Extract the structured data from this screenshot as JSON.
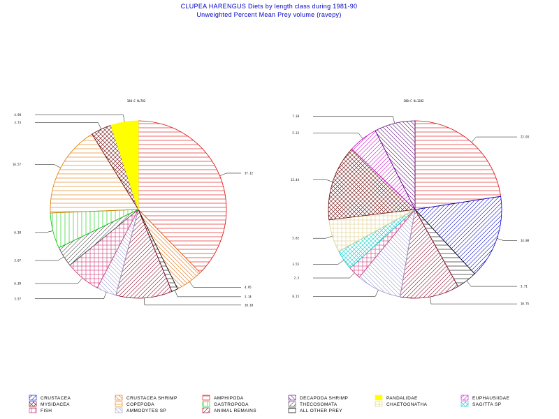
{
  "title": "CLUPEA HARENGUS Diets by length class during  1981-90",
  "subtitle": "Unweighted Percent Mean Prey volume (ravepy)",
  "legend": [
    {
      "key": "crustacea",
      "label": "CRUSTACEA",
      "color": "#0000cc",
      "pattern": "diag-up"
    },
    {
      "key": "crustacea_shrimp",
      "label": "CRUSTACEA SHRIMP",
      "color": "#dd6600",
      "pattern": "diag-down"
    },
    {
      "key": "amphipoda",
      "label": "AMPHIPODA",
      "color": "#dd0000",
      "pattern": "horiz"
    },
    {
      "key": "decapoda_shrimp",
      "label": "DECAPODA SHRIMP",
      "color": "#550077",
      "pattern": "diag-down"
    },
    {
      "key": "pandalidae",
      "label": "PANDALIDAE",
      "color": "#ffff00",
      "pattern": "solid"
    },
    {
      "key": "euphausiidae",
      "label": "EUPHAUSIIDAE",
      "color": "#cc00cc",
      "pattern": "diag-up"
    },
    {
      "key": "mysidacea",
      "label": "MYSIDACEA",
      "color": "#660000",
      "pattern": "cross"
    },
    {
      "key": "copepoda",
      "label": "COPEPODA",
      "color": "#dd7700",
      "pattern": "horiz"
    },
    {
      "key": "gastropoda",
      "label": "GASTROPODA",
      "color": "#00cc00",
      "pattern": "vert"
    },
    {
      "key": "thecosomata",
      "label": "THECOSOMATA",
      "color": "#444444",
      "pattern": "diag-up"
    },
    {
      "key": "chaetognatha",
      "label": "CHAETOGNATHA",
      "color": "#ddcc88",
      "pattern": "grid"
    },
    {
      "key": "sagitta_sp",
      "label": "SAGITTA  SP",
      "color": "#00cccc",
      "pattern": "cross"
    },
    {
      "key": "fish",
      "label": "FISH",
      "color": "#cc3377",
      "pattern": "grid"
    },
    {
      "key": "ammodytes_sp",
      "label": "AMMODYTES  SP",
      "color": "#9999cc",
      "pattern": "diag-down"
    },
    {
      "key": "animal_remains",
      "label": "ANIMAL REMAINS",
      "color": "#880022",
      "pattern": "diag-up"
    },
    {
      "key": "all_other_prey",
      "label": "ALL OTHER PREY",
      "color": "#000000",
      "pattern": "horiz"
    }
  ],
  "chart_data": [
    {
      "type": "pie",
      "title": "180:C N=782",
      "slices": [
        {
          "key": "amphipoda",
          "label": "37.12",
          "value": 37.12
        },
        {
          "key": "crustacea_shrimp",
          "label": "4.95",
          "value": 4.95
        },
        {
          "key": "all_other_prey",
          "label": "1.14",
          "value": 1.14
        },
        {
          "key": "animal_remains",
          "label": "10.18",
          "value": 10.18
        },
        {
          "key": "ammodytes_sp",
          "label": "3.57",
          "value": 3.57
        },
        {
          "key": "fish",
          "label": "6.38",
          "value": 6.38
        },
        {
          "key": "thecosomata",
          "label": "3.67",
          "value": 3.67
        },
        {
          "key": "gastropoda",
          "label": "6.38",
          "value": 6.38
        },
        {
          "key": "copepoda",
          "label": "16.57",
          "value": 16.57
        },
        {
          "key": "mysidacea",
          "label": "3.73",
          "value": 3.73
        },
        {
          "key": "pandalidae",
          "label": "4.98",
          "value": 4.98
        }
      ]
    },
    {
      "type": "pie",
      "title": "280:C N=1282",
      "slices": [
        {
          "key": "amphipoda",
          "label": "22.03",
          "value": 22.03
        },
        {
          "key": "crustacea",
          "label": "14.88",
          "value": 14.88
        },
        {
          "key": "all_other_prey",
          "label": "3.71",
          "value": 3.71
        },
        {
          "key": "animal_remains",
          "label": "10.75",
          "value": 10.75
        },
        {
          "key": "ammodytes_sp",
          "label": "8.15",
          "value": 8.15
        },
        {
          "key": "fish",
          "label": "2.3",
          "value": 2.3
        },
        {
          "key": "sagitta_sp",
          "label": "3.55",
          "value": 3.55
        },
        {
          "key": "chaetognatha",
          "label": "5.82",
          "value": 5.82
        },
        {
          "key": "mysidacea",
          "label": "13.44",
          "value": 13.44
        },
        {
          "key": "euphausiidae",
          "label": "5.33",
          "value": 5.33
        },
        {
          "key": "decapoda_shrimp",
          "label": "7.38",
          "value": 7.38
        }
      ]
    }
  ]
}
